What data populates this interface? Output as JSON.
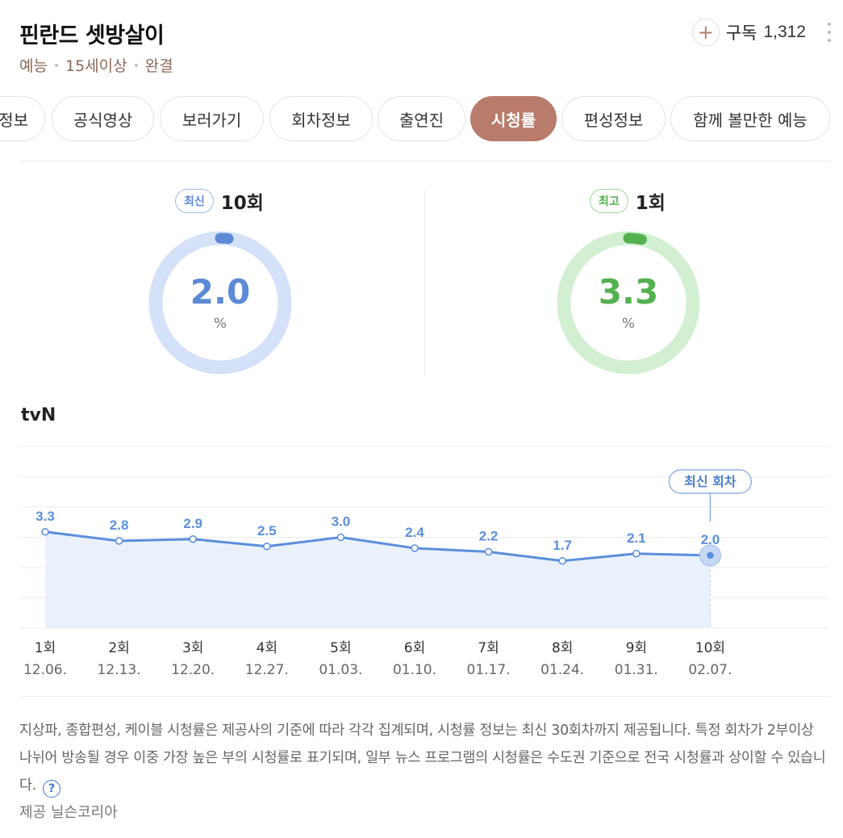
{
  "header": {
    "title": "핀란드 셋방살이",
    "meta": [
      "예능",
      "15세이상",
      "완결"
    ],
    "subscribe_label": "구독",
    "subscribe_count": "1,312",
    "plus_icon": "+"
  },
  "tabs": [
    {
      "label": "정보"
    },
    {
      "label": "공식영상"
    },
    {
      "label": "보러가기"
    },
    {
      "label": "회차정보"
    },
    {
      "label": "출연진"
    },
    {
      "label": "시청률",
      "active": true
    },
    {
      "label": "편성정보"
    },
    {
      "label": "함께 볼만한 예능"
    }
  ],
  "latest": {
    "badge": "최신",
    "episode": "10회",
    "value": "2.0",
    "value_num": 2.0,
    "unit": "%",
    "color": "#5c8ad6",
    "track_color": "#d4e1f8"
  },
  "best": {
    "badge": "최고",
    "episode": "1회",
    "value": "3.3",
    "value_num": 3.3,
    "unit": "%",
    "color": "#53b24f",
    "track_color": "#d3efd2"
  },
  "channel": "tvN",
  "chart_data": {
    "type": "line",
    "categories": [
      "1회",
      "2회",
      "3회",
      "4회",
      "5회",
      "6회",
      "7회",
      "8회",
      "9회",
      "10회"
    ],
    "dates": [
      "12.06.",
      "12.13.",
      "12.20.",
      "12.27.",
      "01.03.",
      "01.10.",
      "01.17.",
      "01.24.",
      "01.31.",
      "02.07."
    ],
    "values": [
      3.3,
      2.8,
      2.9,
      2.5,
      3.0,
      2.4,
      2.2,
      1.7,
      2.1,
      2.0
    ],
    "value_labels": [
      "3.3",
      "2.8",
      "2.9",
      "2.5",
      "3.0",
      "2.4",
      "2.2",
      "1.7",
      "2.1",
      "2.0"
    ],
    "annotation": "최신 회차",
    "ylim": [
      -2,
      8
    ],
    "grid": true,
    "line_color": "#5b8fdc",
    "fill_color": "#eaf1fc"
  },
  "notice": "지상파, 종합편성, 케이블 시청률은 제공사의 기준에 따라 각각 집계되며, 시청률 정보는 최신 30회차까지 제공됩니다. 특정 회차가 2부이상 나뉘어 방송될 경우 이중 가장 높은 부의 시청률로 표기되며, 일부 뉴스 프로그램의 시청률은 수도권 기준으로 전국 시청률과 상이할 수 있습니다.",
  "help_icon": "?",
  "provider": "제공 닐슨코리아"
}
